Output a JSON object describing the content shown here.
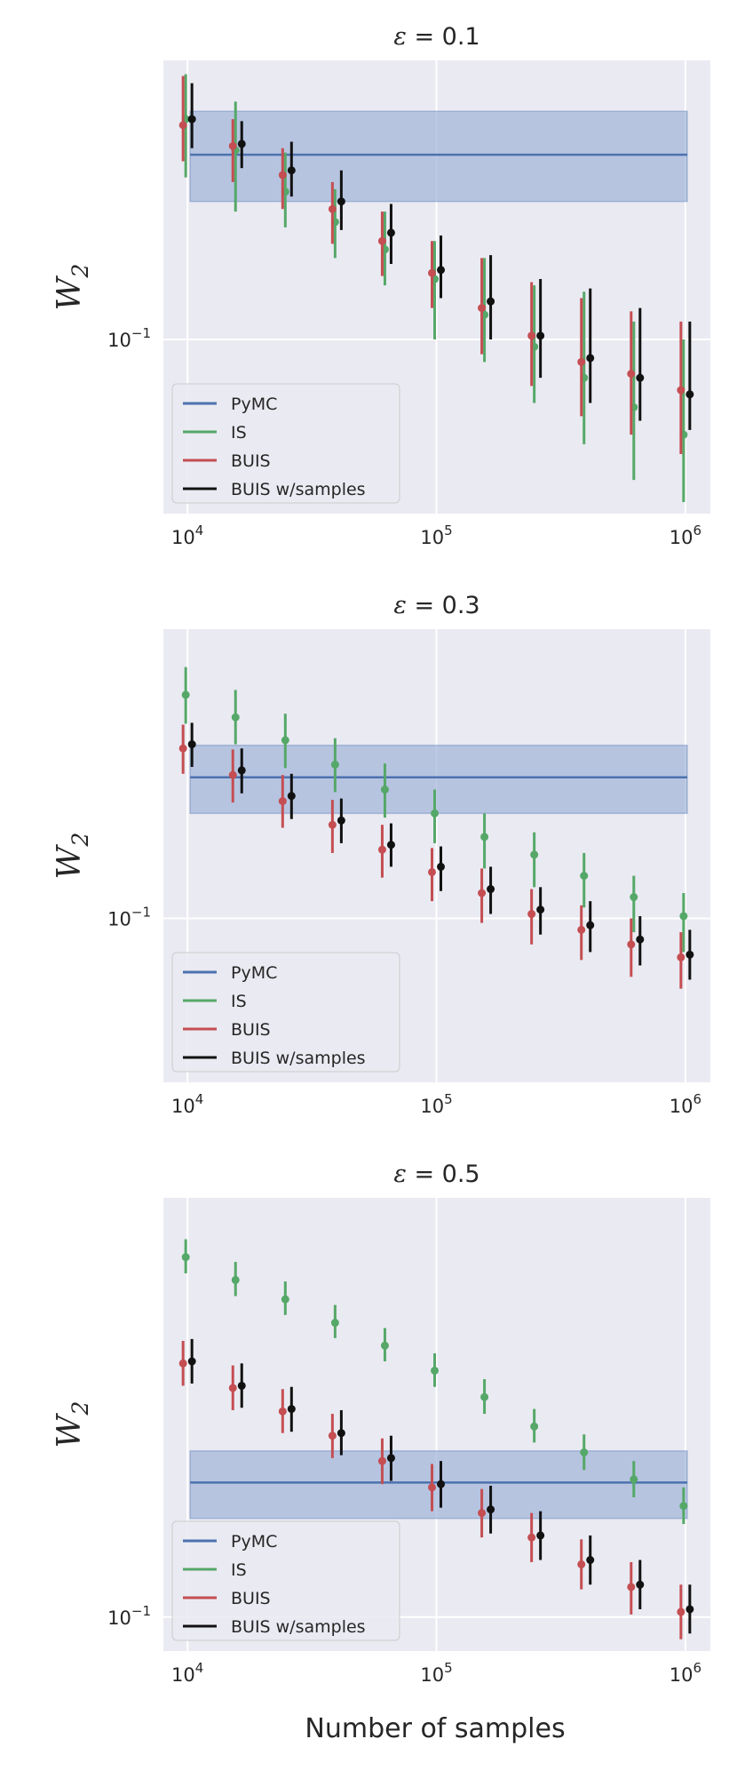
{
  "figure": {
    "xlabel": "Number of samples"
  },
  "colors": {
    "PyMC": "#4c72b0",
    "IS": "#55a868",
    "BUIS": "#c44e52",
    "BUIS w/samples": "#111111",
    "band": "#9fb4d9",
    "axes_bg": "#eaeaf2",
    "grid": "#ffffff"
  },
  "chart_data": [
    {
      "type": "scatter",
      "title": "ε = 0.1",
      "title_prefix": "ε",
      "title_value": "= 0.1",
      "xlabel": "",
      "ylabel": "W",
      "ylabel_sub": "2",
      "xscale": "log",
      "yscale": "log",
      "xlim": [
        8000,
        1260000
      ],
      "ylim": [
        0.062,
        0.215
      ],
      "xticks": [
        {
          "value": 10000,
          "base": "10",
          "exp": "4"
        },
        {
          "value": 100000,
          "base": "10",
          "exp": "5"
        },
        {
          "value": 1000000,
          "base": "10",
          "exp": "6"
        }
      ],
      "yticks": [
        {
          "value": 0.1,
          "base": "10",
          "exp": "−1"
        }
      ],
      "grid": true,
      "legend": {
        "position": "lower-left",
        "entries": [
          "PyMC",
          "IS",
          "BUIS",
          "BUIS w/samples"
        ]
      },
      "reference": {
        "name": "PyMC",
        "x_range": [
          8000,
          1260000
        ],
        "value": 0.166,
        "band": [
          0.146,
          0.187
        ]
      },
      "series": [
        {
          "name": "IS",
          "x": [
            10000,
            15849,
            25119,
            39811,
            63096,
            100000,
            158489,
            251189,
            398107,
            630957,
            1000000
          ],
          "y": [
            0.183,
            0.168,
            0.15,
            0.138,
            0.128,
            0.118,
            0.107,
            0.098,
            0.09,
            0.083,
            0.077
          ],
          "err_low": [
            0.156,
            0.142,
            0.136,
            0.125,
            0.116,
            0.1,
            0.094,
            0.084,
            0.075,
            0.068,
            0.064
          ],
          "err_high": [
            0.207,
            0.192,
            0.167,
            0.151,
            0.142,
            0.131,
            0.125,
            0.116,
            0.114,
            0.105,
            0.1
          ]
        },
        {
          "name": "BUIS",
          "x": [
            10000,
            15849,
            25119,
            39811,
            63096,
            100000,
            158489,
            251189,
            398107,
            630957,
            1000000
          ],
          "y": [
            0.18,
            0.17,
            0.157,
            0.143,
            0.131,
            0.12,
            0.109,
            0.101,
            0.094,
            0.091,
            0.087
          ],
          "err_low": [
            0.163,
            0.154,
            0.143,
            0.13,
            0.119,
            0.109,
            0.096,
            0.088,
            0.081,
            0.077,
            0.073
          ],
          "err_high": [
            0.206,
            0.183,
            0.169,
            0.154,
            0.142,
            0.131,
            0.125,
            0.117,
            0.112,
            0.108,
            0.105
          ]
        },
        {
          "name": "BUIS w/samples",
          "x": [
            10000,
            15849,
            25119,
            39811,
            63096,
            100000,
            158489,
            251189,
            398107,
            630957,
            1000000
          ],
          "y": [
            0.183,
            0.171,
            0.159,
            0.146,
            0.134,
            0.121,
            0.111,
            0.101,
            0.095,
            0.09,
            0.086
          ],
          "err_low": [
            0.169,
            0.16,
            0.148,
            0.135,
            0.123,
            0.112,
            0.1,
            0.09,
            0.084,
            0.08,
            0.078
          ],
          "err_high": [
            0.202,
            0.182,
            0.172,
            0.159,
            0.145,
            0.133,
            0.126,
            0.118,
            0.115,
            0.109,
            0.105
          ]
        }
      ]
    },
    {
      "type": "scatter",
      "title": "ε = 0.3",
      "title_prefix": "ε",
      "title_value": "= 0.3",
      "xlabel": "",
      "ylabel": "W",
      "ylabel_sub": "2",
      "xscale": "log",
      "yscale": "log",
      "xlim": [
        8000,
        1260000
      ],
      "ylim": [
        0.048,
        0.365
      ],
      "xticks": [
        {
          "value": 10000,
          "base": "10",
          "exp": "4"
        },
        {
          "value": 100000,
          "base": "10",
          "exp": "5"
        },
        {
          "value": 1000000,
          "base": "10",
          "exp": "6"
        }
      ],
      "yticks": [
        {
          "value": 0.1,
          "base": "10",
          "exp": "−1"
        }
      ],
      "grid": true,
      "legend": {
        "position": "lower-left",
        "entries": [
          "PyMC",
          "IS",
          "BUIS",
          "BUIS w/samples"
        ]
      },
      "reference": {
        "name": "PyMC",
        "x_range": [
          8000,
          1260000
        ],
        "value": 0.188,
        "band": [
          0.16,
          0.217
        ]
      },
      "series": [
        {
          "name": "IS",
          "x": [
            10000,
            15849,
            25119,
            39811,
            63096,
            100000,
            158489,
            251189,
            398107,
            630957,
            1000000
          ],
          "y": [
            0.272,
            0.246,
            0.222,
            0.199,
            0.178,
            0.16,
            0.144,
            0.133,
            0.121,
            0.11,
            0.101
          ],
          "err_low": [
            0.239,
            0.218,
            0.196,
            0.176,
            0.157,
            0.14,
            0.125,
            0.115,
            0.105,
            0.094,
            0.086
          ],
          "err_high": [
            0.308,
            0.278,
            0.25,
            0.224,
            0.2,
            0.178,
            0.16,
            0.147,
            0.134,
            0.121,
            0.112
          ]
        },
        {
          "name": "BUIS",
          "x": [
            10000,
            15849,
            25119,
            39811,
            63096,
            100000,
            158489,
            251189,
            398107,
            630957,
            1000000
          ],
          "y": [
            0.214,
            0.19,
            0.169,
            0.152,
            0.136,
            0.123,
            0.112,
            0.102,
            0.095,
            0.089,
            0.084
          ],
          "err_low": [
            0.191,
            0.168,
            0.15,
            0.134,
            0.12,
            0.108,
            0.098,
            0.089,
            0.083,
            0.077,
            0.073
          ],
          "err_high": [
            0.238,
            0.213,
            0.19,
            0.17,
            0.152,
            0.137,
            0.125,
            0.114,
            0.106,
            0.1,
            0.094
          ]
        },
        {
          "name": "BUIS w/samples",
          "x": [
            10000,
            15849,
            25119,
            39811,
            63096,
            100000,
            158489,
            251189,
            398107,
            630957,
            1000000
          ],
          "y": [
            0.218,
            0.194,
            0.173,
            0.155,
            0.139,
            0.126,
            0.114,
            0.104,
            0.097,
            0.091,
            0.085
          ],
          "err_low": [
            0.197,
            0.175,
            0.156,
            0.14,
            0.126,
            0.113,
            0.102,
            0.093,
            0.086,
            0.081,
            0.076
          ],
          "err_high": [
            0.24,
            0.214,
            0.191,
            0.171,
            0.153,
            0.138,
            0.126,
            0.115,
            0.108,
            0.101,
            0.095
          ]
        }
      ]
    },
    {
      "type": "scatter",
      "title": "ε = 0.5",
      "title_prefix": "ε",
      "title_value": "= 0.5",
      "xlabel": "Number of samples",
      "ylabel": "W",
      "ylabel_sub": "2",
      "xscale": "log",
      "yscale": "log",
      "xlim": [
        8000,
        1260000
      ],
      "ylim": [
        0.088,
        0.485
      ],
      "xticks": [
        {
          "value": 10000,
          "base": "10",
          "exp": "4"
        },
        {
          "value": 100000,
          "base": "10",
          "exp": "5"
        },
        {
          "value": 1000000,
          "base": "10",
          "exp": "6"
        }
      ],
      "yticks": [
        {
          "value": 0.1,
          "base": "10",
          "exp": "−1"
        }
      ],
      "grid": true,
      "legend": {
        "position": "lower-left",
        "entries": [
          "PyMC",
          "IS",
          "BUIS",
          "BUIS w/samples"
        ]
      },
      "reference": {
        "name": "PyMC",
        "x_range": [
          8000,
          1260000
        ],
        "value": 0.166,
        "band": [
          0.145,
          0.187
        ]
      },
      "series": [
        {
          "name": "IS",
          "x": [
            10000,
            15849,
            25119,
            39811,
            63096,
            100000,
            158489,
            251189,
            398107,
            630957,
            1000000
          ],
          "y": [
            0.388,
            0.356,
            0.331,
            0.303,
            0.278,
            0.253,
            0.229,
            0.205,
            0.186,
            0.168,
            0.152
          ],
          "err_low": [
            0.365,
            0.335,
            0.312,
            0.286,
            0.262,
            0.238,
            0.215,
            0.193,
            0.174,
            0.157,
            0.142
          ],
          "err_high": [
            0.415,
            0.381,
            0.354,
            0.324,
            0.297,
            0.27,
            0.245,
            0.219,
            0.199,
            0.18,
            0.163
          ]
        },
        {
          "name": "BUIS",
          "x": [
            10000,
            15849,
            25119,
            39811,
            63096,
            100000,
            158489,
            251189,
            398107,
            630957,
            1000000
          ],
          "y": [
            0.26,
            0.237,
            0.217,
            0.198,
            0.18,
            0.163,
            0.148,
            0.135,
            0.122,
            0.112,
            0.102
          ],
          "err_low": [
            0.239,
            0.218,
            0.2,
            0.182,
            0.165,
            0.149,
            0.135,
            0.123,
            0.111,
            0.101,
            0.092
          ],
          "err_high": [
            0.283,
            0.258,
            0.236,
            0.215,
            0.196,
            0.178,
            0.162,
            0.148,
            0.134,
            0.123,
            0.113
          ]
        },
        {
          "name": "BUIS w/samples",
          "x": [
            10000,
            15849,
            25119,
            39811,
            63096,
            100000,
            158489,
            251189,
            398107,
            630957,
            1000000
          ],
          "y": [
            0.262,
            0.239,
            0.219,
            0.2,
            0.182,
            0.165,
            0.15,
            0.136,
            0.124,
            0.113,
            0.103
          ],
          "err_low": [
            0.241,
            0.22,
            0.201,
            0.184,
            0.167,
            0.151,
            0.137,
            0.124,
            0.113,
            0.103,
            0.094
          ],
          "err_high": [
            0.285,
            0.26,
            0.238,
            0.218,
            0.198,
            0.18,
            0.164,
            0.149,
            0.136,
            0.124,
            0.113
          ]
        }
      ]
    }
  ]
}
